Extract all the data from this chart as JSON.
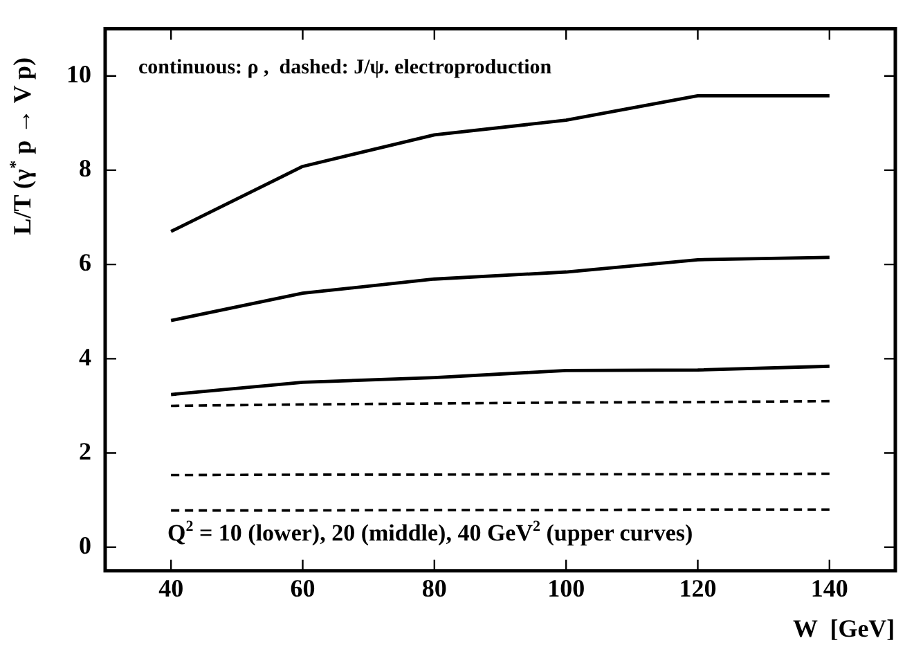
{
  "chart_data": {
    "type": "line",
    "xlabel": "W  [GeV]",
    "ylabel": "L/T (γ$^{*}$ p → V p)",
    "annotations": [
      "continuous: ρ ,  dashed: J/ψ. electroproduction",
      "Q$^{2}$ = 10 (lower), 20 (middle), 40 GeV$^{2}$ (upper curves)"
    ],
    "x": [
      40,
      60,
      80,
      100,
      120,
      140
    ],
    "series": [
      {
        "color": "#000000",
        "line_style": "solid",
        "values": [
          6.7,
          8.08,
          8.75,
          9.06,
          9.58,
          9.58
        ]
      },
      {
        "color": "#000000",
        "line_style": "solid",
        "values": [
          4.81,
          5.39,
          5.69,
          5.84,
          6.1,
          6.15
        ]
      },
      {
        "color": "#000000",
        "line_style": "solid",
        "values": [
          3.24,
          3.5,
          3.6,
          3.75,
          3.76,
          3.84
        ]
      },
      {
        "color": "#000000",
        "line_style": "dashed",
        "values": [
          3.0,
          3.03,
          3.05,
          3.07,
          3.08,
          3.1
        ]
      },
      {
        "color": "#000000",
        "line_style": "dashed",
        "values": [
          1.53,
          1.54,
          1.54,
          1.55,
          1.55,
          1.56
        ]
      },
      {
        "color": "#000000",
        "line_style": "dashed",
        "values": [
          0.78,
          0.78,
          0.79,
          0.79,
          0.8,
          0.8
        ]
      }
    ],
    "xlim": [
      30,
      150
    ],
    "xticks": [
      40,
      60,
      80,
      100,
      120,
      140
    ],
    "ylim": [
      -0.5,
      11
    ],
    "yticks": [
      0,
      2,
      4,
      6,
      8,
      10
    ],
    "grid": false,
    "legend": false,
    "marker": "none"
  }
}
